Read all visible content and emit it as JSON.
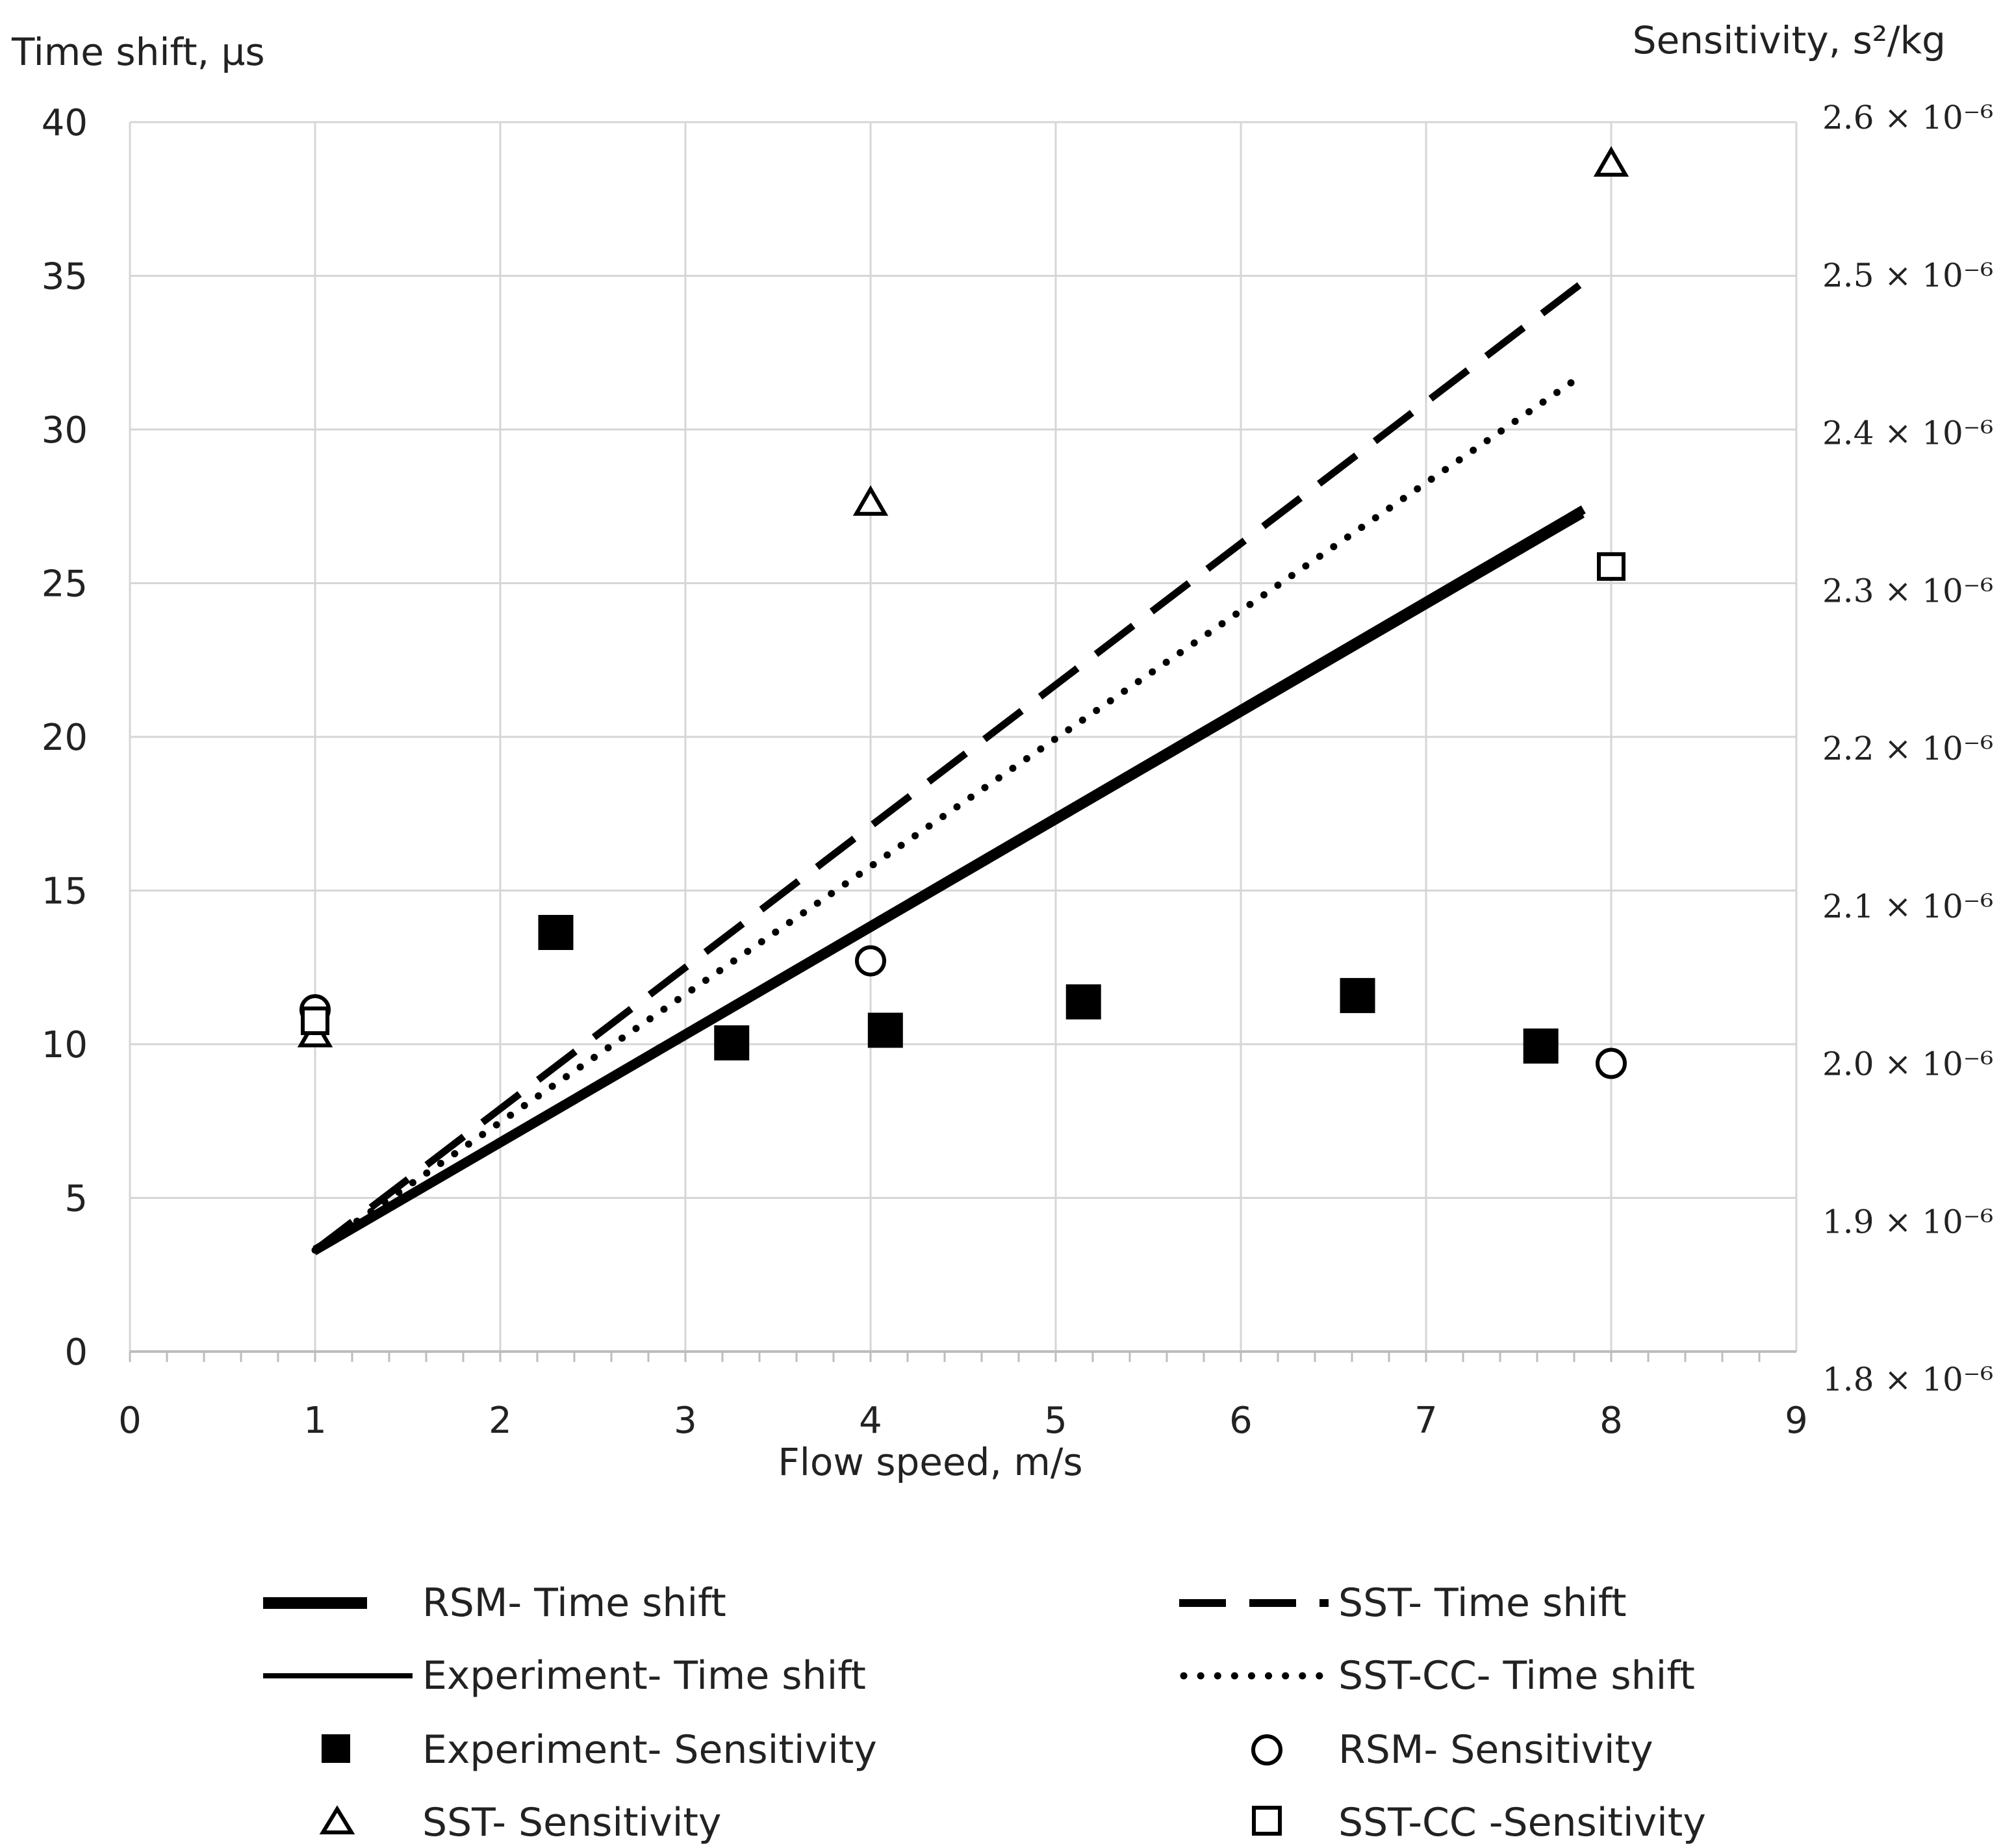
{
  "chart_data": {
    "type": "line",
    "title": "",
    "xlabel": "Flow speed, m/s",
    "ylabel_left": "Time shift, µs",
    "ylabel_right": "Sensitivity, s²/kg",
    "xlim": [
      0,
      9
    ],
    "ylim_left": [
      0,
      40
    ],
    "ylim_right": [
      1.8e-06,
      2.6e-06
    ],
    "x_ticks": [
      "0",
      "1",
      "2",
      "3",
      "4",
      "5",
      "6",
      "7",
      "8",
      "9"
    ],
    "y_left_ticks": [
      "0",
      "5",
      "10",
      "15",
      "20",
      "25",
      "30",
      "35",
      "40"
    ],
    "y_right_ticks": [
      "1.8 × 10⁻⁶",
      "1.9 × 10⁻⁶",
      "2.0 × 10⁻⁶",
      "2.1 × 10⁻⁶",
      "2.2 × 10⁻⁶",
      "2.3 × 10⁻⁶",
      "2.4 × 10⁻⁶",
      "2.5 × 10⁻⁶",
      "2.6 × 10⁻⁶"
    ],
    "grid": true,
    "legend_position": "bottom",
    "lines": [
      {
        "name": "RSM- Time shift",
        "style": "thick",
        "axis": "left",
        "x": [
          1,
          7.85
        ],
        "y": [
          3.3,
          27.4
        ]
      },
      {
        "name": "SST- Time shift",
        "style": "dashed",
        "axis": "left",
        "x": [
          1,
          7.85
        ],
        "y": [
          3.3,
          34.8
        ]
      },
      {
        "name": "Experiment- Time shift",
        "style": "solid",
        "axis": "left",
        "x": [
          1,
          7.85
        ],
        "y": [
          3.2,
          27.2
        ]
      },
      {
        "name": "SST-CC- Time shift",
        "style": "dotted",
        "axis": "left",
        "x": [
          1,
          7.85
        ],
        "y": [
          3.3,
          31.8
        ]
      }
    ],
    "points": [
      {
        "name": "Experiment- Sensitivity",
        "marker": "filled-square",
        "axis": "right",
        "x": [
          2.3,
          3.25,
          4.08,
          5.15,
          6.63,
          7.62
        ],
        "y": [
          2.083e-06,
          2.013e-06,
          2.021e-06,
          2.039e-06,
          2.043e-06,
          2.011e-06
        ]
      },
      {
        "name": "RSM- Sensitivity",
        "marker": "open-circle",
        "axis": "right",
        "x": [
          1,
          4,
          8
        ],
        "y": [
          2.034e-06,
          2.065e-06,
          2e-06
        ]
      },
      {
        "name": "SST- Sensitivity",
        "marker": "open-triangle",
        "axis": "right",
        "x": [
          1,
          4,
          8
        ],
        "y": [
          2.018e-06,
          2.355e-06,
          2.57e-06
        ]
      },
      {
        "name": "SST-CC -Sensitivity",
        "marker": "open-square",
        "axis": "right",
        "x": [
          1,
          8
        ],
        "y": [
          2.027e-06,
          2.315e-06
        ]
      }
    ],
    "legend": {
      "rsm_time": "RSM- Time shift",
      "sst_time": "SST- Time shift",
      "exp_time": "Experiment- Time shift",
      "sstcc_time": "SST-CC- Time shift",
      "exp_sens": "Experiment- Sensitivity",
      "rsm_sens": "RSM- Sensitivity",
      "sst_sens": "SST- Sensitivity",
      "sstcc_sens": "SST-CC -Sensitivity"
    }
  }
}
